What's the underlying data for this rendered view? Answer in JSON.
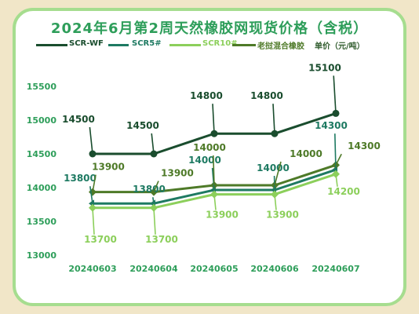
{
  "title": "2024年6月第2周天然橡胶网现货价格（含税）",
  "unit_label": "单价（元/吨）",
  "colors": {
    "background": "#f1e6c8",
    "border": "#a6dd8f",
    "title": "#2e9e5a",
    "axis_text": "#2e9e5a"
  },
  "chart_data": {
    "type": "line",
    "title": "2024年6月第2周天然橡胶网现货价格（含税）",
    "xlabel": "",
    "ylabel": "",
    "categories": [
      "20240603",
      "20240604",
      "20240605",
      "20240606",
      "20240607"
    ],
    "ylim": [
      13000,
      15500
    ],
    "yticks": [
      13000,
      13500,
      14000,
      14500,
      15000,
      15500
    ],
    "grid": false,
    "legend_position": "top",
    "series": [
      {
        "name": "SCR-WF",
        "values": [
          14500,
          14500,
          14800,
          14800,
          15100
        ],
        "color": "#1a4d2e",
        "marker": "circle"
      },
      {
        "name": "SCR5#",
        "values": [
          13800,
          13800,
          14000,
          14000,
          14300
        ],
        "color": "#1e7a62",
        "marker": "arrow"
      },
      {
        "name": "SCR10#",
        "values": [
          13700,
          13700,
          13900,
          13900,
          14200
        ],
        "color": "#8ccf5b",
        "marker": "diamond"
      },
      {
        "name": "老挝混合橡胶",
        "values": [
          13900,
          13900,
          14000,
          14000,
          14300
        ],
        "color": "#4e7a28",
        "marker": "diamond"
      }
    ]
  }
}
